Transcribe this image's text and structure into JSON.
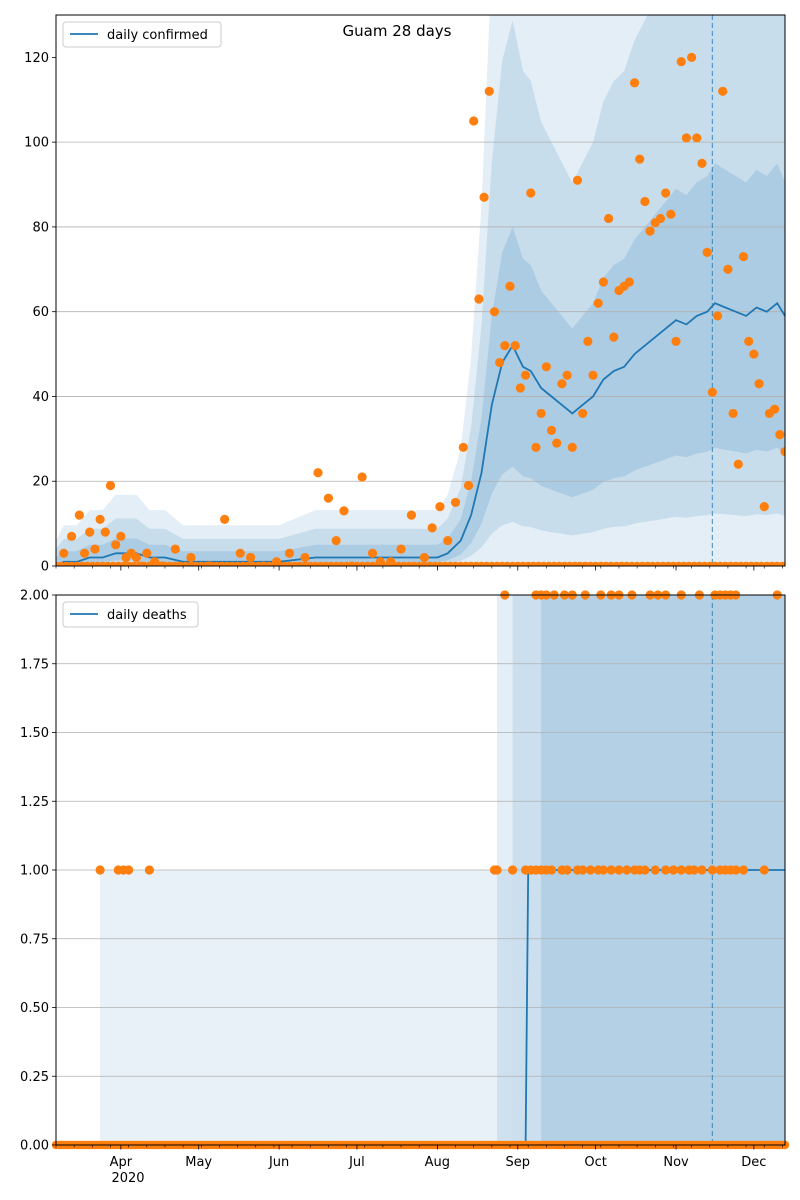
{
  "colors": {
    "line": "#1f77b4",
    "points": "#ff7f0e",
    "band": "#1f77b4",
    "grid": "#b0b0b0",
    "vline": "#1f77b4"
  },
  "chart_data": [
    {
      "type": "line",
      "title": "Guam 28 days",
      "ylim": [
        0,
        130
      ],
      "yticks": [
        0,
        20,
        40,
        60,
        80,
        100,
        120
      ],
      "grid": "y",
      "legend_position": "top-left",
      "x_start": "2020-03-07",
      "x_end": "2020-12-13",
      "vline_date": "2020-11-15",
      "series": [
        {
          "name": "daily confirmed",
          "kind": "line",
          "x": [
            "2020-03-07",
            "2020-03-10",
            "2020-03-15",
            "2020-03-20",
            "2020-03-25",
            "2020-03-30",
            "2020-04-03",
            "2020-04-07",
            "2020-04-12",
            "2020-04-18",
            "2020-04-25",
            "2020-05-01",
            "2020-05-15",
            "2020-06-01",
            "2020-06-15",
            "2020-07-01",
            "2020-07-15",
            "2020-07-25",
            "2020-08-01",
            "2020-08-05",
            "2020-08-10",
            "2020-08-14",
            "2020-08-18",
            "2020-08-22",
            "2020-08-26",
            "2020-08-30",
            "2020-09-03",
            "2020-09-06",
            "2020-09-10",
            "2020-09-14",
            "2020-09-18",
            "2020-09-22",
            "2020-09-26",
            "2020-09-30",
            "2020-10-04",
            "2020-10-08",
            "2020-10-12",
            "2020-10-16",
            "2020-10-20",
            "2020-10-24",
            "2020-10-28",
            "2020-11-01",
            "2020-11-05",
            "2020-11-09",
            "2020-11-13",
            "2020-11-16",
            "2020-11-20",
            "2020-11-24",
            "2020-11-28",
            "2020-12-02",
            "2020-12-06",
            "2020-12-10",
            "2020-12-13"
          ],
          "y": [
            0,
            1,
            1,
            2,
            2,
            3,
            3,
            3,
            2,
            2,
            1,
            1,
            1,
            1,
            2,
            2,
            2,
            2,
            2,
            3,
            6,
            12,
            22,
            38,
            48,
            52,
            47,
            46,
            42,
            40,
            38,
            36,
            38,
            40,
            44,
            46,
            47,
            50,
            52,
            54,
            56,
            58,
            57,
            59,
            60,
            62,
            61,
            60,
            59,
            61,
            60,
            62,
            59
          ]
        },
        {
          "name": "",
          "kind": "scatter",
          "x": [
            "2020-03-10",
            "2020-03-13",
            "2020-03-16",
            "2020-03-18",
            "2020-03-20",
            "2020-03-22",
            "2020-03-24",
            "2020-03-26",
            "2020-03-28",
            "2020-03-30",
            "2020-04-01",
            "2020-04-03",
            "2020-04-05",
            "2020-04-07",
            "2020-04-09",
            "2020-04-11",
            "2020-04-14",
            "2020-04-17",
            "2020-04-22",
            "2020-04-28",
            "2020-05-05",
            "2020-05-11",
            "2020-05-17",
            "2020-05-21",
            "2020-05-26",
            "2020-05-31",
            "2020-06-05",
            "2020-06-11",
            "2020-06-16",
            "2020-06-20",
            "2020-06-23",
            "2020-06-26",
            "2020-06-29",
            "2020-07-03",
            "2020-07-07",
            "2020-07-10",
            "2020-07-14",
            "2020-07-18",
            "2020-07-22",
            "2020-07-27",
            "2020-07-30",
            "2020-08-02",
            "2020-08-05",
            "2020-08-08",
            "2020-08-11",
            "2020-08-13",
            "2020-08-15",
            "2020-08-17",
            "2020-08-19",
            "2020-08-21",
            "2020-08-23",
            "2020-08-25",
            "2020-08-27",
            "2020-08-29",
            "2020-08-31",
            "2020-09-02",
            "2020-09-04",
            "2020-09-06",
            "2020-09-08",
            "2020-09-10",
            "2020-09-12",
            "2020-09-14",
            "2020-09-16",
            "2020-09-18",
            "2020-09-20",
            "2020-09-22",
            "2020-09-24",
            "2020-09-26",
            "2020-09-28",
            "2020-09-30",
            "2020-10-02",
            "2020-10-04",
            "2020-10-06",
            "2020-10-08",
            "2020-10-10",
            "2020-10-12",
            "2020-10-14",
            "2020-10-16",
            "2020-10-18",
            "2020-10-20",
            "2020-10-22",
            "2020-10-24",
            "2020-10-26",
            "2020-10-28",
            "2020-10-30",
            "2020-11-01",
            "2020-11-03",
            "2020-11-05",
            "2020-11-07",
            "2020-11-09",
            "2020-11-11",
            "2020-11-13",
            "2020-11-15",
            "2020-11-17",
            "2020-11-19",
            "2020-11-21",
            "2020-11-23",
            "2020-11-25",
            "2020-11-27",
            "2020-11-29",
            "2020-12-01",
            "2020-12-03",
            "2020-12-05",
            "2020-12-07",
            "2020-12-09",
            "2020-12-11",
            "2020-12-13"
          ],
          "y": [
            3,
            7,
            12,
            3,
            8,
            4,
            11,
            8,
            19,
            5,
            7,
            2,
            3,
            2,
            0,
            3,
            1,
            0,
            4,
            2,
            0,
            11,
            3,
            2,
            0,
            1,
            3,
            2,
            22,
            16,
            6,
            13,
            0,
            21,
            3,
            1,
            1,
            4,
            12,
            2,
            9,
            14,
            6,
            15,
            28,
            19,
            105,
            63,
            87,
            112,
            60,
            48,
            52,
            66,
            52,
            42,
            45,
            88,
            28,
            36,
            47,
            32,
            29,
            43,
            45,
            28,
            91,
            36,
            53,
            45,
            62,
            67,
            82,
            54,
            65,
            66,
            67,
            114,
            96,
            86,
            79,
            81,
            82,
            88,
            83,
            53,
            119,
            101,
            120,
            101,
            95,
            74,
            41,
            59,
            112,
            70,
            36,
            24,
            73,
            53,
            50,
            43,
            14,
            36,
            37,
            31,
            27
          ]
        }
      ]
    },
    {
      "type": "line",
      "title": "",
      "ylim": [
        0,
        2
      ],
      "yticks": [
        0.0,
        0.25,
        0.5,
        0.75,
        1.0,
        1.25,
        1.5,
        1.75,
        2.0
      ],
      "ytick_labels": [
        "0.00",
        "0.25",
        "0.50",
        "0.75",
        "1.00",
        "1.25",
        "1.50",
        "1.75",
        "2.00"
      ],
      "grid": "y",
      "legend_position": "top-left",
      "x_start": "2020-03-07",
      "x_end": "2020-12-13",
      "vline_date": "2020-11-15",
      "xticks": [
        "Apr",
        "May",
        "Jun",
        "Jul",
        "Aug",
        "Sep",
        "Oct",
        "Nov",
        "Dec"
      ],
      "xtick_dates": [
        "2020-04-01",
        "2020-05-01",
        "2020-06-01",
        "2020-07-01",
        "2020-08-01",
        "2020-09-01",
        "2020-10-01",
        "2020-11-01",
        "2020-12-01"
      ],
      "year_label": "2020",
      "series": [
        {
          "name": "daily deaths",
          "kind": "line",
          "x": [
            "2020-03-07",
            "2020-09-04",
            "2020-09-05",
            "2020-12-13"
          ],
          "y": [
            0,
            0,
            1,
            1
          ]
        },
        {
          "name": "",
          "kind": "scatter",
          "x": [
            "2020-03-24",
            "2020-03-31",
            "2020-04-02",
            "2020-04-04",
            "2020-04-12",
            "2020-08-23",
            "2020-08-24",
            "2020-08-30",
            "2020-09-04",
            "2020-09-06",
            "2020-09-08",
            "2020-09-10",
            "2020-09-12",
            "2020-09-14",
            "2020-09-18",
            "2020-09-20",
            "2020-09-24",
            "2020-09-26",
            "2020-09-29",
            "2020-10-02",
            "2020-10-04",
            "2020-10-07",
            "2020-10-10",
            "2020-10-13",
            "2020-10-16",
            "2020-10-18",
            "2020-10-20",
            "2020-10-24",
            "2020-10-28",
            "2020-10-31",
            "2020-11-03",
            "2020-11-06",
            "2020-11-08",
            "2020-11-11",
            "2020-11-15",
            "2020-11-18",
            "2020-11-20",
            "2020-11-22",
            "2020-11-24",
            "2020-11-27",
            "2020-12-05",
            "2020-08-27",
            "2020-09-08",
            "2020-09-10",
            "2020-09-12",
            "2020-09-15",
            "2020-09-19",
            "2020-09-22",
            "2020-09-27",
            "2020-10-03",
            "2020-10-07",
            "2020-10-10",
            "2020-10-15",
            "2020-10-22",
            "2020-10-25",
            "2020-10-28",
            "2020-11-03",
            "2020-11-10",
            "2020-11-16",
            "2020-11-18",
            "2020-11-20",
            "2020-11-22",
            "2020-11-24",
            "2020-12-10"
          ],
          "y": [
            1,
            1,
            1,
            1,
            1,
            1,
            1,
            1,
            1,
            1,
            1,
            1,
            1,
            1,
            1,
            1,
            1,
            1,
            1,
            1,
            1,
            1,
            1,
            1,
            1,
            1,
            1,
            1,
            1,
            1,
            1,
            1,
            1,
            1,
            1,
            1,
            1,
            1,
            1,
            1,
            1,
            2,
            2,
            2,
            2,
            2,
            2,
            2,
            2,
            2,
            2,
            2,
            2,
            2,
            2,
            2,
            2,
            2,
            2,
            2,
            2,
            2,
            2,
            2
          ]
        }
      ]
    }
  ]
}
